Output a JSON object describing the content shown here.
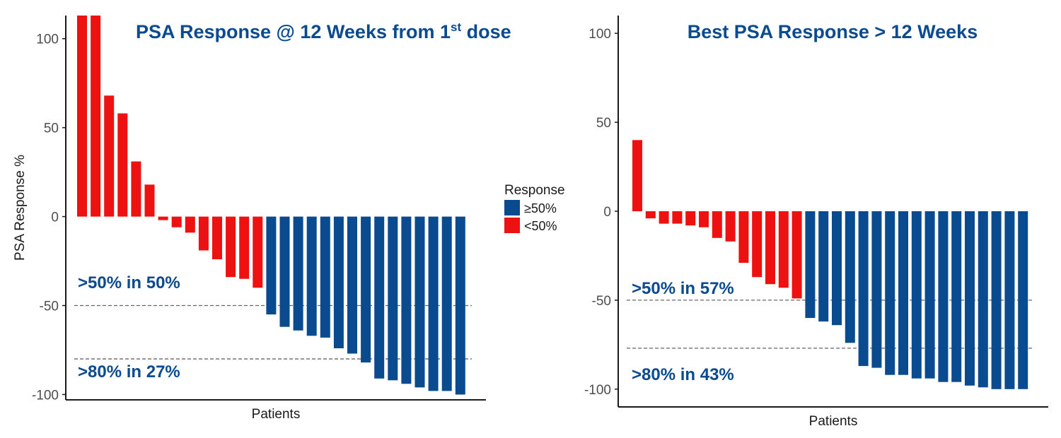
{
  "colors": {
    "responder": "#0a4a8f",
    "non_responder": "#ee1111",
    "annotation": "#0a4a8f",
    "reference_line": "#666666"
  },
  "legend": {
    "title": "Response",
    "items": [
      {
        "label": "≥50%",
        "color": "#0a4a8f"
      },
      {
        "label": "<50%",
        "color": "#ee1111"
      }
    ]
  },
  "chart_data": [
    {
      "type": "bar",
      "title_main": "PSA Response @ 12 Weeks from 1",
      "title_sup": "st",
      "title_end": " dose",
      "xlabel": "Patients",
      "ylabel": "PSA Response %",
      "ylim": [
        -103,
        113
      ],
      "yticks": [
        100,
        50,
        0,
        -50,
        -100
      ],
      "reference_lines": [
        -50,
        -80
      ],
      "annotations": [
        ">50% in 50%",
        ">80% in 27%"
      ],
      "values": [
        113,
        113,
        68,
        58,
        31,
        18,
        -2,
        -6,
        -9,
        -19,
        -24,
        -34,
        -35,
        -40,
        -55,
        -62,
        -64,
        -67,
        -68,
        -74,
        -77,
        -82,
        -91,
        -92,
        -94,
        -96,
        -98,
        -98,
        -100
      ],
      "groups": [
        "<50%",
        "<50%",
        "<50%",
        "<50%",
        "<50%",
        "<50%",
        "<50%",
        "<50%",
        "<50%",
        "<50%",
        "<50%",
        "<50%",
        "<50%",
        "<50%",
        "≥50%",
        "≥50%",
        "≥50%",
        "≥50%",
        "≥50%",
        "≥50%",
        "≥50%",
        "≥50%",
        "≥50%",
        "≥50%",
        "≥50%",
        "≥50%",
        "≥50%",
        "≥50%",
        "≥50%"
      ]
    },
    {
      "type": "bar",
      "title_main": "Best PSA Response > 12 Weeks",
      "title_sup": "",
      "title_end": "",
      "xlabel": "Patients",
      "ylabel": "",
      "ylim": [
        -110,
        110
      ],
      "yticks": [
        100,
        50,
        0,
        -50,
        -100
      ],
      "reference_lines": [
        -50,
        -77
      ],
      "annotations": [
        ">50% in 57%",
        ">80% in 43%"
      ],
      "values": [
        40,
        -4,
        -7,
        -7,
        -8,
        -9,
        -15,
        -17,
        -29,
        -37,
        -41,
        -43,
        -49,
        -60,
        -62,
        -64,
        -74,
        -87,
        -88,
        -92,
        -92,
        -94,
        -94,
        -96,
        -96,
        -98,
        -99,
        -100,
        -100,
        -100
      ],
      "groups": [
        "<50%",
        "<50%",
        "<50%",
        "<50%",
        "<50%",
        "<50%",
        "<50%",
        "<50%",
        "<50%",
        "<50%",
        "<50%",
        "<50%",
        "<50%",
        "≥50%",
        "≥50%",
        "≥50%",
        "≥50%",
        "≥50%",
        "≥50%",
        "≥50%",
        "≥50%",
        "≥50%",
        "≥50%",
        "≥50%",
        "≥50%",
        "≥50%",
        "≥50%",
        "≥50%",
        "≥50%",
        "≥50%"
      ]
    }
  ]
}
